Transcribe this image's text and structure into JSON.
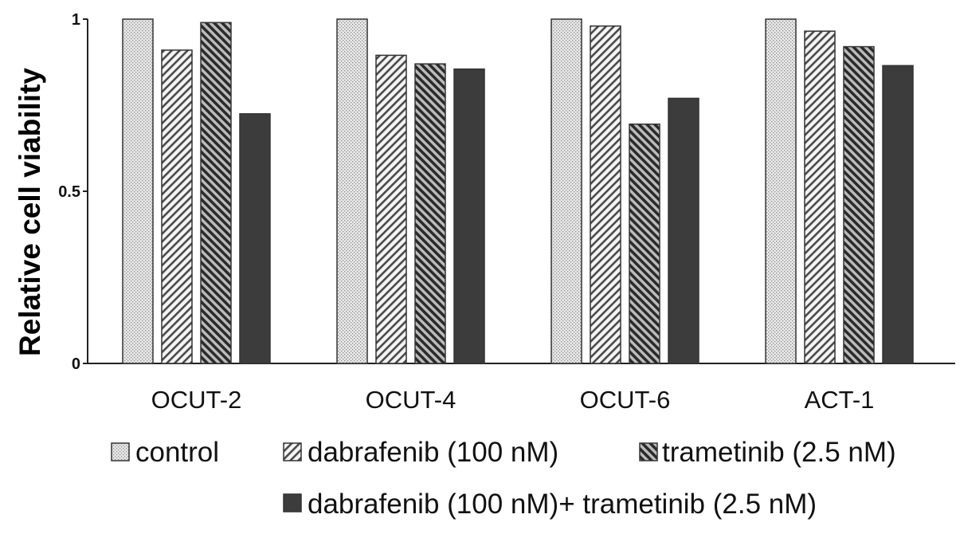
{
  "chart_data": {
    "type": "bar",
    "title": "",
    "xlabel": "",
    "ylabel": "Relative cell viability",
    "ylim": [
      0,
      1
    ],
    "yticks": [
      {
        "value": 0,
        "label": "0"
      },
      {
        "value": 0.5,
        "label": "0.5"
      },
      {
        "value": 1,
        "label": "1"
      }
    ],
    "grid": false,
    "legend_position": "bottom",
    "categories": [
      "OCUT-2",
      "OCUT-4",
      "OCUT-6",
      "ACT-1"
    ],
    "series": [
      {
        "name": "control",
        "pattern": "dots",
        "values": [
          1.0,
          1.0,
          1.0,
          1.0
        ]
      },
      {
        "name": "dabrafenib (100 nM)",
        "pattern": "hatch-back",
        "values": [
          0.91,
          0.895,
          0.98,
          0.965
        ]
      },
      {
        "name": "trametinib (2.5 nM)",
        "pattern": "hatch-forward",
        "values": [
          0.99,
          0.87,
          0.695,
          0.92
        ]
      },
      {
        "name": "dabrafenib (100 nM)+ trametinib (2.5 nM)",
        "pattern": "solid",
        "values": [
          0.725,
          0.855,
          0.77,
          0.865
        ]
      }
    ],
    "colors": {
      "bar_stroke": "#333333",
      "solid_fill": "#3c3c3c",
      "axis": "#222222"
    }
  }
}
